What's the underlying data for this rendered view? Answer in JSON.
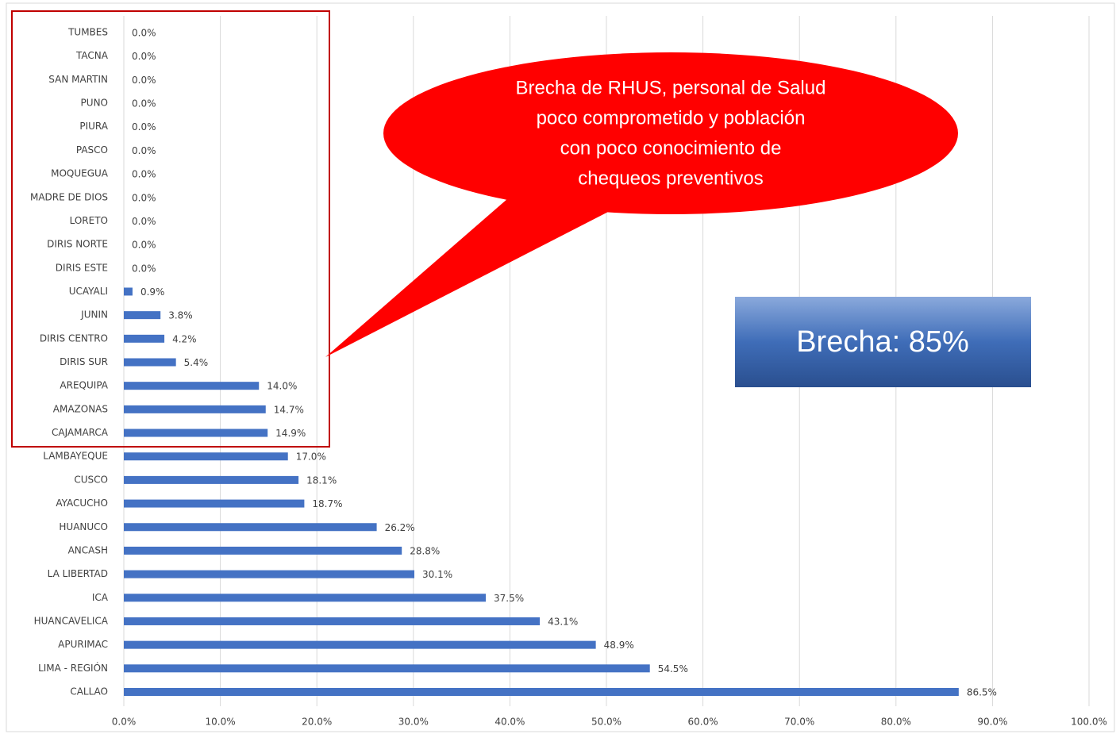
{
  "chart_data": {
    "type": "barh",
    "categories": [
      "TUMBES",
      "TACNA",
      "SAN MARTIN",
      "PUNO",
      "PIURA",
      "PASCO",
      "MOQUEGUA",
      "MADRE DE DIOS",
      "LORETO",
      "DIRIS NORTE",
      "DIRIS ESTE",
      "UCAYALI",
      "JUNIN",
      "DIRIS CENTRO",
      "DIRIS SUR",
      "AREQUIPA",
      "AMAZONAS",
      "CAJAMARCA",
      "LAMBAYEQUE",
      "CUSCO",
      "AYACUCHO",
      "HUANUCO",
      "ANCASH",
      "LA LIBERTAD",
      "ICA",
      "HUANCAVELICA",
      "APURIMAC",
      "LIMA - REGIÓN",
      "CALLAO"
    ],
    "values": [
      0,
      0,
      0,
      0,
      0,
      0,
      0,
      0,
      0,
      0,
      0,
      0.9,
      3.8,
      4.2,
      5.4,
      14.0,
      14.7,
      14.9,
      17.0,
      18.1,
      18.7,
      26.2,
      28.8,
      30.1,
      37.5,
      43.1,
      48.9,
      54.5,
      86.5
    ],
    "value_labels": [
      "0.0%",
      "0.0%",
      "0.0%",
      "0.0%",
      "0.0%",
      "0.0%",
      "0.0%",
      "0.0%",
      "0.0%",
      "0.0%",
      "0.0%",
      "0.9%",
      "3.8%",
      "4.2%",
      "5.4%",
      "14.0%",
      "14.7%",
      "14.9%",
      "17.0%",
      "18.1%",
      "18.7%",
      "26.2%",
      "28.8%",
      "30.1%",
      "37.5%",
      "43.1%",
      "48.9%",
      "54.5%",
      "86.5%"
    ],
    "color": "#4472c4",
    "xlim": [
      0,
      100
    ],
    "xticks": [
      {
        "value": 0,
        "label": "0.0%"
      },
      {
        "value": 10,
        "label": "10.0%"
      },
      {
        "value": 20,
        "label": "20.0%"
      },
      {
        "value": 30,
        "label": "30.0%"
      },
      {
        "value": 40,
        "label": "40.0%"
      },
      {
        "value": 50,
        "label": "50.0%"
      },
      {
        "value": 60,
        "label": "60.0%"
      },
      {
        "value": 70,
        "label": "70.0%"
      },
      {
        "value": 80,
        "label": "80.0%"
      },
      {
        "value": 90,
        "label": "90.0%"
      },
      {
        "value": 100,
        "label": "100.0%"
      }
    ],
    "grid": true,
    "annotations": {
      "callout": [
        "Brecha de RHUS, personal de Salud",
        "poco comprometido y población",
        "con poco conocimiento de",
        "chequeos preventivos"
      ],
      "box": "Brecha: 85%"
    }
  }
}
